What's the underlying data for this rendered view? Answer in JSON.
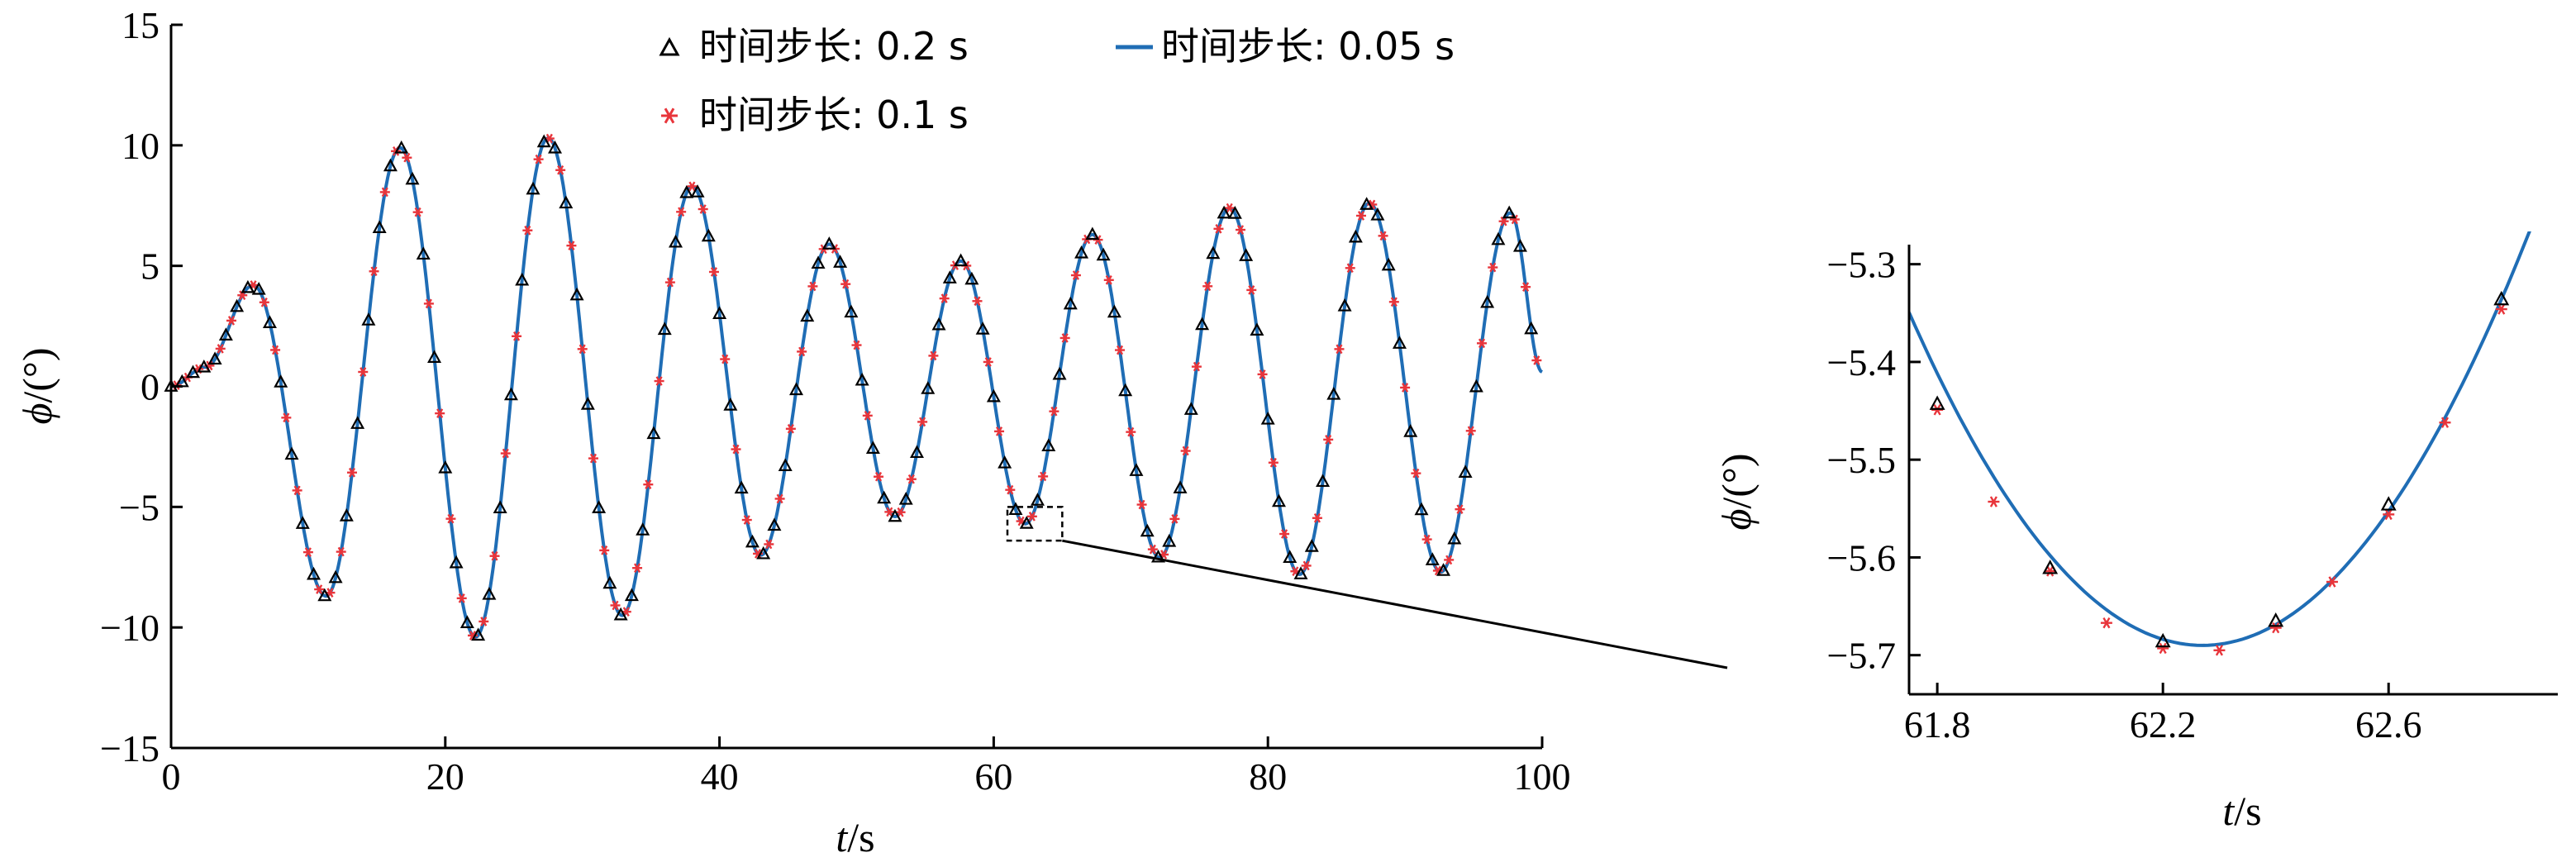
{
  "colors": {
    "series_line": "#1f6db5",
    "triangle": "#000000",
    "star": "#e8353b",
    "axis": "#000000"
  },
  "legend": {
    "items": [
      {
        "label": "时间步长: 0.2 s",
        "marker": "triangle"
      },
      {
        "label": "时间步长: 0.05 s",
        "marker": "line"
      },
      {
        "label": "时间步长: 0.1 s",
        "marker": "star"
      }
    ]
  },
  "chart_data": [
    {
      "type": "line",
      "xlabel_italic": "t",
      "xlabel_unit": "/s",
      "ylabel_italic": "ϕ",
      "ylabel_unit": "/(°)",
      "xlim": [
        0,
        100
      ],
      "ylim": [
        -15,
        15
      ],
      "xticks": [
        0,
        20,
        40,
        60,
        80,
        100
      ],
      "yticks": [
        -15,
        -10,
        -5,
        0,
        5,
        10,
        15
      ],
      "ytick_labels": [
        "−15",
        "−10",
        "−5",
        "0",
        "5",
        "10",
        "15"
      ],
      "grid": false,
      "legend_position": "top",
      "peaks": [
        {
          "t": 0.0,
          "v": 0.0
        },
        {
          "t": 2.5,
          "v": 0.8
        },
        {
          "t": 6.0,
          "v": 4.2
        },
        {
          "t": 11.3,
          "v": -8.7
        },
        {
          "t": 16.7,
          "v": 9.9
        },
        {
          "t": 22.2,
          "v": -10.4
        },
        {
          "t": 27.5,
          "v": 10.3
        },
        {
          "t": 32.9,
          "v": -9.5
        },
        {
          "t": 38.0,
          "v": 8.3
        },
        {
          "t": 43.0,
          "v": -7.0
        },
        {
          "t": 48.0,
          "v": 5.9
        },
        {
          "t": 52.8,
          "v": -5.4
        },
        {
          "t": 57.6,
          "v": 5.2
        },
        {
          "t": 62.3,
          "v": -5.7
        },
        {
          "t": 67.2,
          "v": 6.3
        },
        {
          "t": 72.1,
          "v": -7.1
        },
        {
          "t": 77.2,
          "v": 7.4
        },
        {
          "t": 82.3,
          "v": -7.8
        },
        {
          "t": 87.4,
          "v": 7.6
        },
        {
          "t": 92.6,
          "v": -7.7
        },
        {
          "t": 97.7,
          "v": 7.2
        },
        {
          "t": 100.0,
          "v": 0.6
        }
      ],
      "series": [
        {
          "name": "时间步长: 0.2 s",
          "marker": "triangle",
          "dt": 0.8
        },
        {
          "name": "时间步长: 0.1 s",
          "marker": "star",
          "dt": 0.8,
          "offset": 0.4
        },
        {
          "name": "时间步长: 0.05 s",
          "marker": "line"
        }
      ],
      "zoom_box": {
        "x": [
          61.0,
          65.0
        ],
        "y": [
          -6.4,
          -5.0
        ]
      }
    },
    {
      "type": "line",
      "xlabel_italic": "t",
      "xlabel_unit": "/s",
      "ylabel_italic": "ϕ",
      "ylabel_unit": "/(°)",
      "xlim": [
        61.75,
        62.9
      ],
      "ylim": [
        -5.74,
        -5.28
      ],
      "xticks": [
        61.8,
        62.2,
        62.6
      ],
      "xtick_labels": [
        "61.8",
        "62.2",
        "62.6"
      ],
      "yticks": [
        -5.7,
        -5.6,
        -5.5,
        -5.4,
        -5.3
      ],
      "ytick_labels": [
        "−5.7",
        "−5.6",
        "−5.5",
        "−5.4",
        "−5.3"
      ],
      "grid": false,
      "line_min": {
        "t": 62.27,
        "v": -5.69
      },
      "line_curvature": 1.26,
      "line_range": [
        61.75,
        62.88
      ],
      "series": [
        {
          "name": "时间步长: 0.2 s",
          "marker": "triangle",
          "x": [
            61.8,
            62.0,
            62.2,
            62.4,
            62.6,
            62.8
          ],
          "y": [
            -5.443,
            -5.611,
            -5.686,
            -5.665,
            -5.546,
            -5.336
          ]
        },
        {
          "name": "时间步长: 0.1 s",
          "marker": "star",
          "x": [
            61.8,
            61.9,
            62.0,
            62.1,
            62.2,
            62.3,
            62.4,
            62.5,
            62.6,
            62.7,
            62.8
          ],
          "y": [
            -5.449,
            -5.543,
            -5.614,
            -5.667,
            -5.693,
            -5.695,
            -5.672,
            -5.625,
            -5.556,
            -5.462,
            -5.346
          ]
        },
        {
          "name": "时间步长: 0.05 s",
          "marker": "line"
        }
      ]
    }
  ]
}
